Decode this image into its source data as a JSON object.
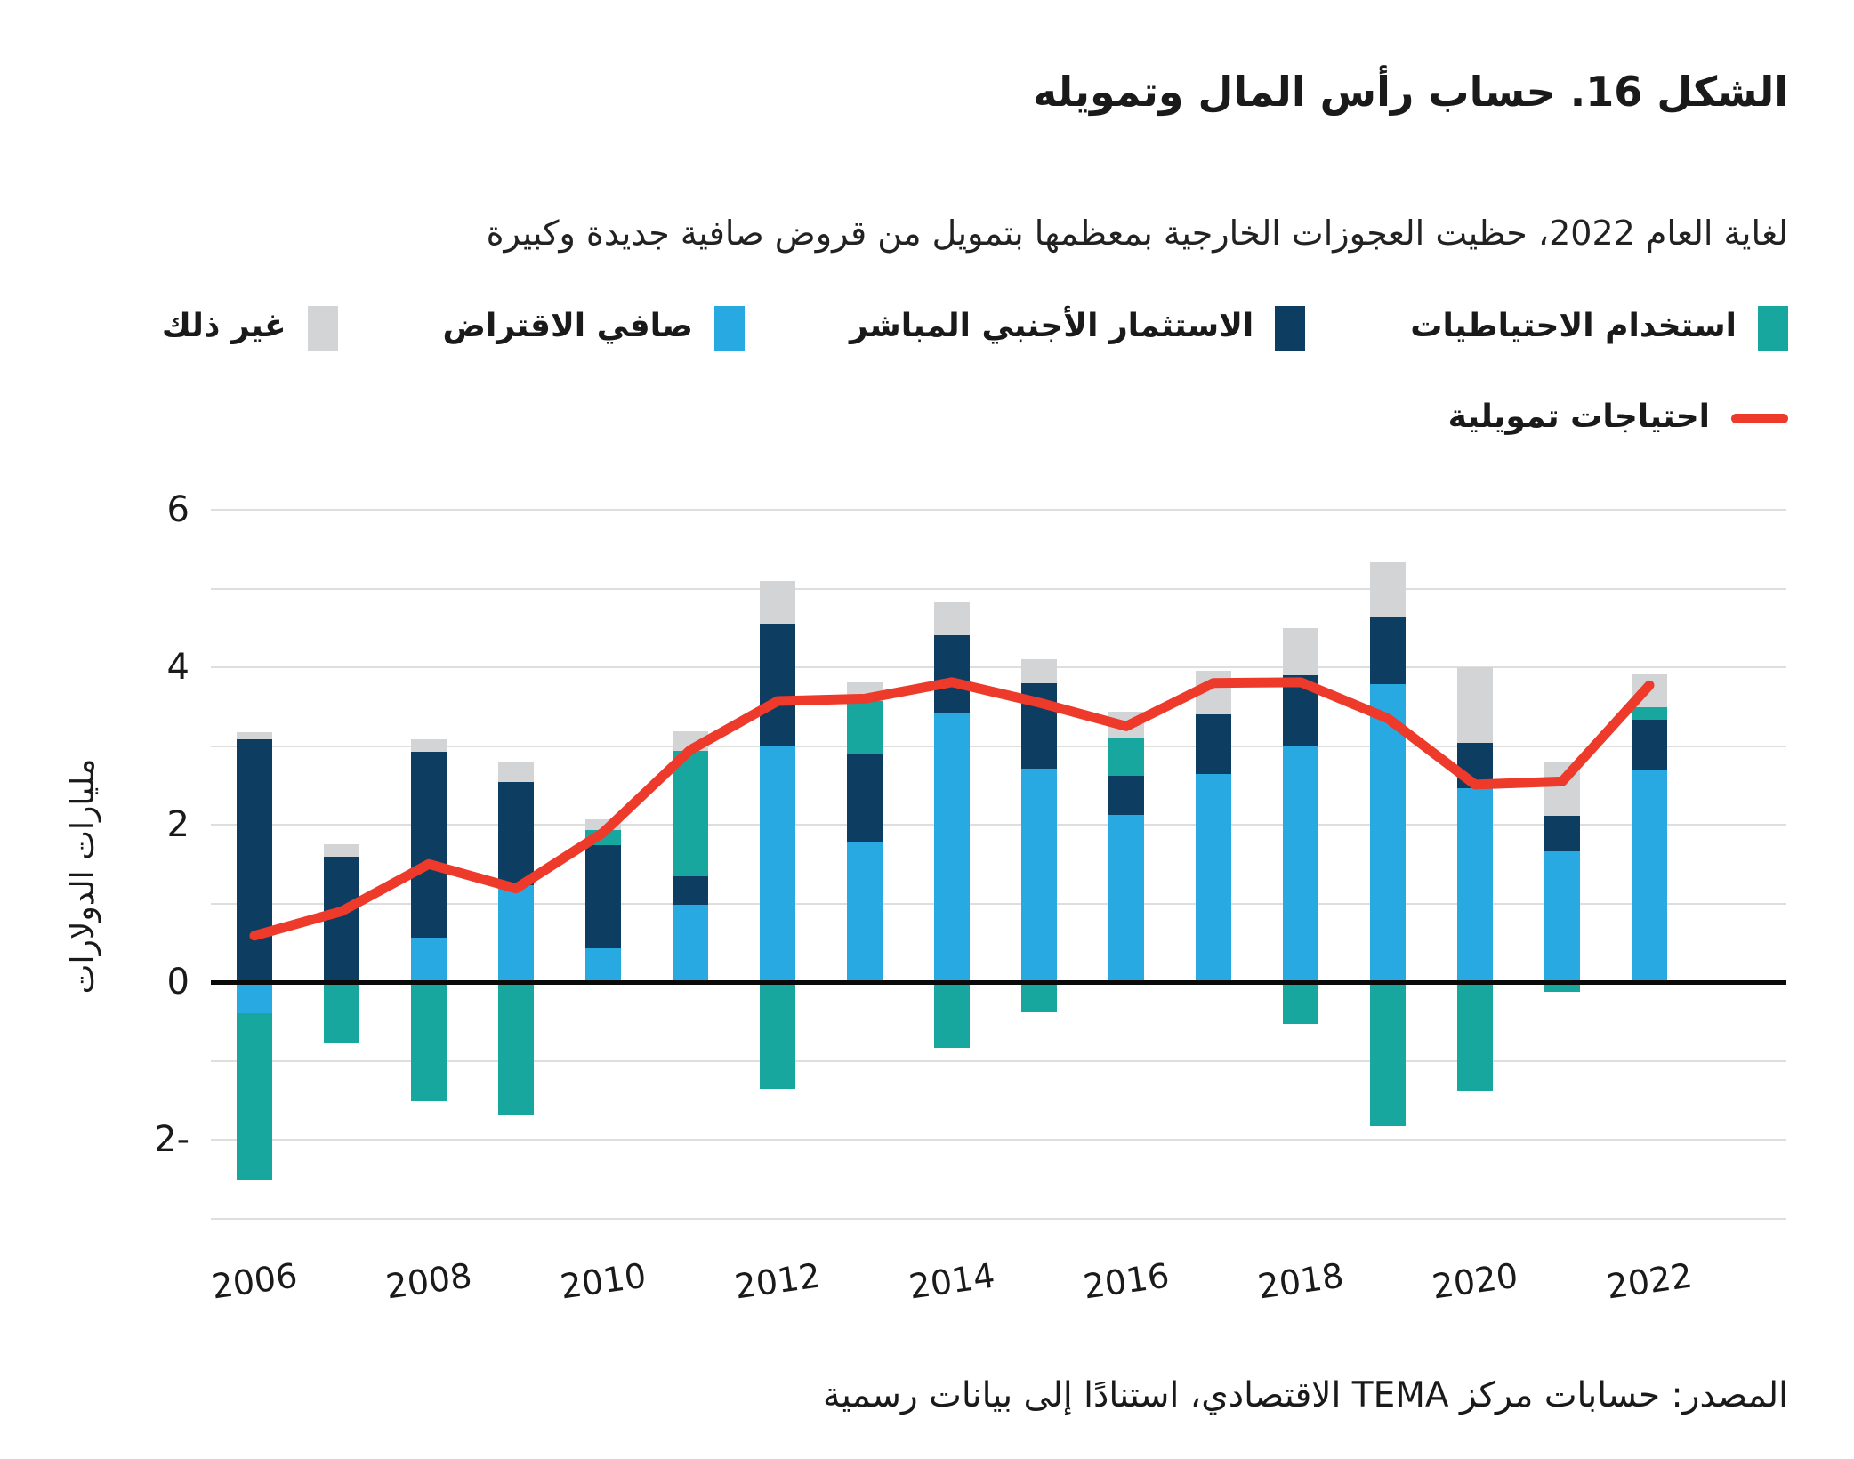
{
  "meta": {
    "title": "الشكل 16. حساب رأس المال وتمويله",
    "subtitle": "لغاية العام 2022، حظيت العجوزات الخارجية بمعظمها بتمويل من قروض صافية جديدة وكبيرة",
    "source": "المصدر: حسابات مركز TEMA الاقتصادي، استنادًا إلى بيانات رسمية"
  },
  "colors": {
    "reserves": "#17a79f",
    "fdi": "#0d3d61",
    "borrowing": "#29a9e1",
    "other": "#d2d4d6",
    "need": "#ed3a2b",
    "grid": "#dedede",
    "zero": "#0a0a0a"
  },
  "legend": {
    "items": [
      {
        "key": "reserves",
        "label": "استخدام الاحتياطيات"
      },
      {
        "key": "fdi",
        "label": "الاستثمار الأجنبي المباشر"
      },
      {
        "key": "borrowing",
        "label": "صافي الاقتراض"
      },
      {
        "key": "other",
        "label": "غير ذلك"
      }
    ],
    "line_label": "احتياجات تمويلية"
  },
  "chart_data": {
    "type": "bar",
    "stacked": true,
    "ylabel": "مليارات الدولارات",
    "ylim": [
      -3,
      6
    ],
    "grid": true,
    "yticks_all": [
      6,
      5,
      4,
      3,
      2,
      1,
      0,
      -1,
      -2,
      -3
    ],
    "yticks_labeled": [
      6,
      4,
      2,
      0,
      -2
    ],
    "xticks_labeled": [
      "2006",
      "2008",
      "2010",
      "2012",
      "2014",
      "2016",
      "2018",
      "2020",
      "2022"
    ],
    "categories": [
      "2006",
      "2007",
      "2008",
      "2009",
      "2010",
      "2011",
      "2012",
      "2013",
      "2014",
      "2015",
      "2016",
      "2017",
      "2018",
      "2019",
      "2020",
      "2021",
      "2022"
    ],
    "series_legend": {
      "reserves": "استخدام الاحتياطيات",
      "fdi": "الاستثمار الأجنبي المباشر",
      "borrowing": "صافي الاقتراض",
      "other": "غير ذلك",
      "need": "احتياجات تمويلية"
    },
    "bars": [
      {
        "year": "2006",
        "segments": [
          {
            "k": "fdi",
            "v": 3.09
          },
          {
            "k": "other",
            "v": 0.08
          },
          {
            "k": "borrowing",
            "v": -0.4
          },
          {
            "k": "reserves",
            "v": -2.11
          }
        ]
      },
      {
        "year": "2007",
        "segments": [
          {
            "k": "fdi",
            "v": 1.59
          },
          {
            "k": "other",
            "v": 0.16
          },
          {
            "k": "reserves",
            "v": -0.77
          }
        ]
      },
      {
        "year": "2008",
        "segments": [
          {
            "k": "borrowing",
            "v": 0.57
          },
          {
            "k": "fdi",
            "v": 2.36
          },
          {
            "k": "other",
            "v": 0.15
          },
          {
            "k": "reserves",
            "v": -1.51
          }
        ]
      },
      {
        "year": "2009",
        "segments": [
          {
            "k": "borrowing",
            "v": 1.23
          },
          {
            "k": "fdi",
            "v": 1.31
          },
          {
            "k": "other",
            "v": 0.25
          },
          {
            "k": "reserves",
            "v": -1.68
          }
        ]
      },
      {
        "year": "2010",
        "segments": [
          {
            "k": "borrowing",
            "v": 0.43
          },
          {
            "k": "fdi",
            "v": 1.31
          },
          {
            "k": "reserves",
            "v": 0.19
          },
          {
            "k": "other",
            "v": 0.14
          }
        ]
      },
      {
        "year": "2011",
        "segments": [
          {
            "k": "borrowing",
            "v": 0.98
          },
          {
            "k": "fdi",
            "v": 0.37
          },
          {
            "k": "reserves",
            "v": 1.59
          },
          {
            "k": "other",
            "v": 0.25
          }
        ]
      },
      {
        "year": "2012",
        "segments": [
          {
            "k": "borrowing",
            "v": 3.0
          },
          {
            "k": "fdi",
            "v": 1.55
          },
          {
            "k": "other",
            "v": 0.55
          },
          {
            "k": "reserves",
            "v": -1.36
          }
        ]
      },
      {
        "year": "2013",
        "segments": [
          {
            "k": "borrowing",
            "v": 1.77
          },
          {
            "k": "fdi",
            "v": 1.12
          },
          {
            "k": "reserves",
            "v": 0.68
          },
          {
            "k": "other",
            "v": 0.24
          }
        ]
      },
      {
        "year": "2014",
        "segments": [
          {
            "k": "borrowing",
            "v": 3.42
          },
          {
            "k": "fdi",
            "v": 0.99
          },
          {
            "k": "other",
            "v": 0.42
          },
          {
            "k": "reserves",
            "v": -0.84
          }
        ]
      },
      {
        "year": "2015",
        "segments": [
          {
            "k": "borrowing",
            "v": 2.71
          },
          {
            "k": "fdi",
            "v": 1.09
          },
          {
            "k": "other",
            "v": 0.3
          },
          {
            "k": "reserves",
            "v": -0.37
          }
        ]
      },
      {
        "year": "2016",
        "segments": [
          {
            "k": "borrowing",
            "v": 2.12
          },
          {
            "k": "fdi",
            "v": 0.5
          },
          {
            "k": "reserves",
            "v": 0.49
          },
          {
            "k": "other",
            "v": 0.32
          }
        ]
      },
      {
        "year": "2017",
        "segments": [
          {
            "k": "borrowing",
            "v": 2.64
          },
          {
            "k": "fdi",
            "v": 0.76
          },
          {
            "k": "other",
            "v": 0.55
          }
        ]
      },
      {
        "year": "2018",
        "segments": [
          {
            "k": "borrowing",
            "v": 3.01
          },
          {
            "k": "fdi",
            "v": 0.89
          },
          {
            "k": "other",
            "v": 0.6
          },
          {
            "k": "reserves",
            "v": -0.53
          }
        ]
      },
      {
        "year": "2019",
        "segments": [
          {
            "k": "borrowing",
            "v": 3.79
          },
          {
            "k": "fdi",
            "v": 0.84
          },
          {
            "k": "other",
            "v": 0.7
          },
          {
            "k": "reserves",
            "v": -1.83
          }
        ]
      },
      {
        "year": "2020",
        "segments": [
          {
            "k": "borrowing",
            "v": 2.46
          },
          {
            "k": "fdi",
            "v": 0.58
          },
          {
            "k": "other",
            "v": 0.96
          },
          {
            "k": "reserves",
            "v": -1.38
          }
        ]
      },
      {
        "year": "2021",
        "segments": [
          {
            "k": "borrowing",
            "v": 1.66
          },
          {
            "k": "fdi",
            "v": 0.45
          },
          {
            "k": "other",
            "v": 0.69
          },
          {
            "k": "reserves",
            "v": -0.12
          }
        ]
      },
      {
        "year": "2022",
        "segments": [
          {
            "k": "borrowing",
            "v": 2.7
          },
          {
            "k": "fdi",
            "v": 0.63
          },
          {
            "k": "reserves",
            "v": 0.16
          },
          {
            "k": "other",
            "v": 0.42
          }
        ]
      }
    ],
    "line": {
      "name": "احتياجات تمويلية",
      "values": [
        0.59,
        0.9,
        1.5,
        1.19,
        1.9,
        2.95,
        3.57,
        3.6,
        3.81,
        3.55,
        3.25,
        3.8,
        3.81,
        3.35,
        2.51,
        2.55,
        3.77
      ]
    }
  }
}
